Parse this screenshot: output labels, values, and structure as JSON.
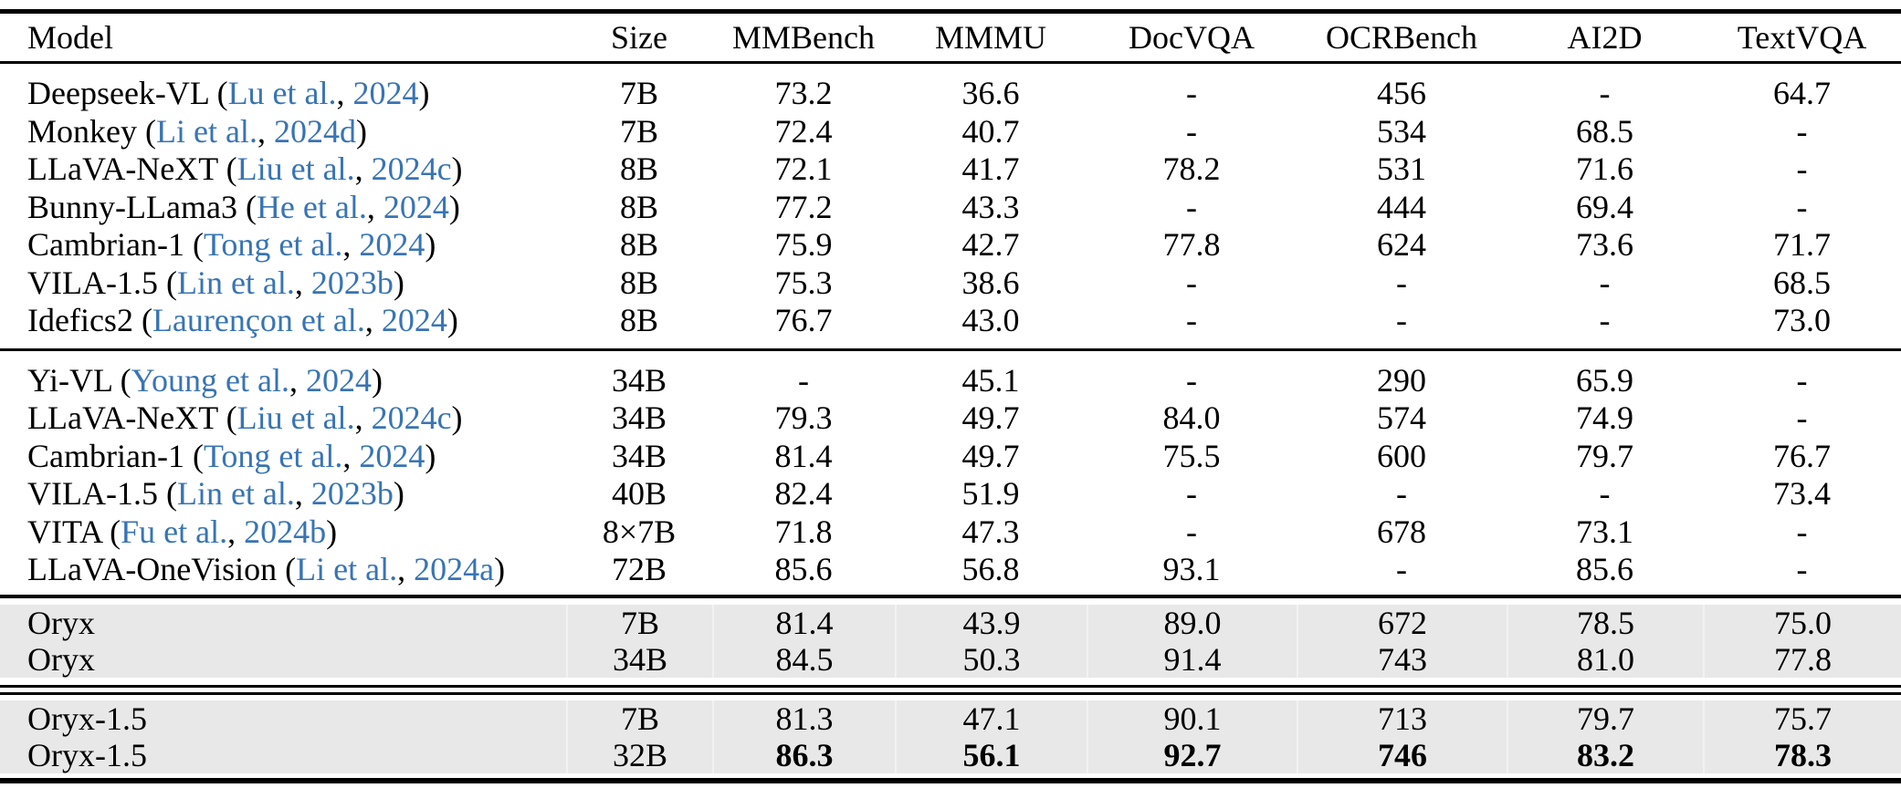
{
  "theme": {
    "link_color": "#3874b4",
    "shade_color": "#e8e8e8",
    "rule_color": "#000000"
  },
  "table": {
    "columns": [
      "Model",
      "Size",
      "MMBench",
      "MMMU",
      "DocVQA",
      "OCRBench",
      "AI2D",
      "TextVQA"
    ],
    "sections": [
      {
        "shaded": false,
        "rows": [
          {
            "model": "Deepseek-VL",
            "cite_authors": "Lu et al.",
            "cite_year": "2024",
            "size": "7B",
            "values": [
              "73.2",
              "36.6",
              "-",
              "456",
              "-",
              "64.7"
            ]
          },
          {
            "model": "Monkey",
            "cite_authors": "Li et al.",
            "cite_year": "2024d",
            "size": "7B",
            "values": [
              "72.4",
              "40.7",
              "-",
              "534",
              "68.5",
              "-"
            ]
          },
          {
            "model": "LLaVA-NeXT",
            "cite_authors": "Liu et al.",
            "cite_year": "2024c",
            "size": "8B",
            "values": [
              "72.1",
              "41.7",
              "78.2",
              "531",
              "71.6",
              "-"
            ]
          },
          {
            "model": "Bunny-LLama3",
            "cite_authors": "He et al.",
            "cite_year": "2024",
            "size": "8B",
            "values": [
              "77.2",
              "43.3",
              "-",
              "444",
              "69.4",
              "-"
            ]
          },
          {
            "model": "Cambrian-1",
            "cite_authors": "Tong et al.",
            "cite_year": "2024",
            "size": "8B",
            "values": [
              "75.9",
              "42.7",
              "77.8",
              "624",
              "73.6",
              "71.7"
            ]
          },
          {
            "model": "VILA-1.5",
            "cite_authors": "Lin et al.",
            "cite_year": "2023b",
            "size": "8B",
            "values": [
              "75.3",
              "38.6",
              "-",
              "-",
              "-",
              "68.5"
            ]
          },
          {
            "model": "Idefics2",
            "cite_authors": "Laurençon et al.",
            "cite_year": "2024",
            "size": "8B",
            "values": [
              "76.7",
              "43.0",
              "-",
              "-",
              "-",
              "73.0"
            ]
          }
        ]
      },
      {
        "shaded": false,
        "rows": [
          {
            "model": "Yi-VL",
            "cite_authors": "Young et al.",
            "cite_year": "2024",
            "size": "34B",
            "values": [
              "-",
              "45.1",
              "-",
              "290",
              "65.9",
              "-"
            ]
          },
          {
            "model": "LLaVA-NeXT",
            "cite_authors": "Liu et al.",
            "cite_year": "2024c",
            "size": "34B",
            "values": [
              "79.3",
              "49.7",
              "84.0",
              "574",
              "74.9",
              "-"
            ]
          },
          {
            "model": "Cambrian-1",
            "cite_authors": "Tong et al.",
            "cite_year": "2024",
            "size": "34B",
            "values": [
              "81.4",
              "49.7",
              "75.5",
              "600",
              "79.7",
              "76.7"
            ]
          },
          {
            "model": "VILA-1.5",
            "cite_authors": "Lin et al.",
            "cite_year": "2023b",
            "size": "40B",
            "values": [
              "82.4",
              "51.9",
              "-",
              "-",
              "-",
              "73.4"
            ]
          },
          {
            "model": "VITA",
            "cite_authors": "Fu et al.",
            "cite_year": "2024b",
            "size": "8×7B",
            "values": [
              "71.8",
              "47.3",
              "-",
              "678",
              "73.1",
              "-"
            ]
          },
          {
            "model": "LLaVA-OneVision",
            "cite_authors": "Li et al.",
            "cite_year": "2024a",
            "size": "72B",
            "values": [
              "85.6",
              "56.8",
              "93.1",
              "-",
              "85.6",
              "-"
            ]
          }
        ]
      },
      {
        "shaded": true,
        "rows": [
          {
            "model": "Oryx",
            "size": "7B",
            "values": [
              "81.4",
              "43.9",
              "89.0",
              "672",
              "78.5",
              "75.0"
            ]
          },
          {
            "model": "Oryx",
            "size": "34B",
            "values": [
              "84.5",
              "50.3",
              "91.4",
              "743",
              "81.0",
              "77.8"
            ]
          }
        ]
      },
      {
        "shaded": true,
        "rows": [
          {
            "model": "Oryx-1.5",
            "size": "7B",
            "values": [
              "81.3",
              "47.1",
              "90.1",
              "713",
              "79.7",
              "75.7"
            ]
          },
          {
            "model": "Oryx-1.5",
            "size": "32B",
            "bold": true,
            "values": [
              "86.3",
              "56.1",
              "92.7",
              "746",
              "83.2",
              "78.3"
            ]
          }
        ]
      }
    ]
  }
}
